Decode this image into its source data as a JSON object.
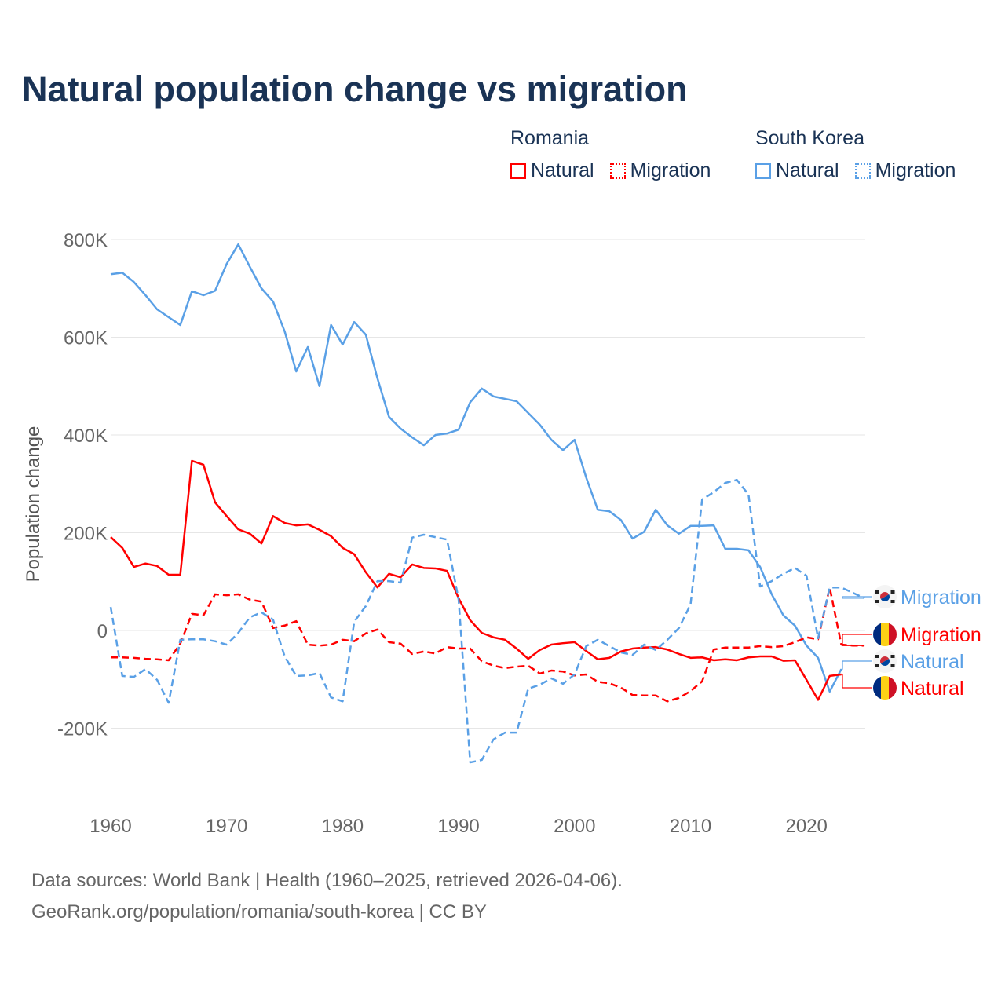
{
  "chart_data": {
    "type": "line",
    "title": "Natural population change vs migration",
    "xlabel": "",
    "ylabel": "Population change",
    "ylim": [
      -300000,
      850000
    ],
    "xlim": [
      1960,
      2025
    ],
    "grid": true,
    "y_ticks": [
      {
        "v": 800,
        "label": "800K"
      },
      {
        "v": 600,
        "label": "600K"
      },
      {
        "v": 400,
        "label": "400K"
      },
      {
        "v": 200,
        "label": "200K"
      },
      {
        "v": 0,
        "label": "0"
      },
      {
        "v": -200,
        "label": "-200K"
      }
    ],
    "x_ticks": [
      1960,
      1970,
      1980,
      1990,
      2000,
      2010,
      2020
    ],
    "legend": {
      "placement": "top-right",
      "groups": [
        {
          "country": "Romania",
          "items": [
            "Natural",
            "Migration"
          ]
        },
        {
          "country": "South Korea",
          "items": [
            "Natural",
            "Migration"
          ]
        }
      ]
    },
    "units": "thousands",
    "series": [
      {
        "name": "South Korea Natural",
        "country": "South Korea",
        "kind": "Natural",
        "color": "#5aa0e6",
        "dashed": false,
        "start": 1960,
        "values": [
          729,
          732,
          713,
          686,
          657,
          641,
          625,
          694,
          686,
          695,
          750,
          790,
          744,
          700,
          673,
          612,
          530,
          580,
          500,
          625,
          585,
          631,
          605,
          516,
          437,
          413,
          395,
          379,
          400,
          403,
          411,
          467,
          495,
          479,
          474,
          469,
          445,
          421,
          390,
          369,
          390,
          313,
          247,
          244,
          226,
          188,
          202,
          247,
          215,
          198,
          214,
          214,
          215,
          167,
          167,
          164,
          130,
          74,
          31,
          10,
          -31,
          -56,
          -125,
          -79
        ]
      },
      {
        "name": "Romania Natural",
        "country": "Romania",
        "kind": "Natural",
        "color": "#ff0000",
        "dashed": false,
        "start": 1960,
        "values": [
          191,
          169,
          130,
          137,
          132,
          114,
          114,
          347,
          339,
          262,
          234,
          207,
          198,
          178,
          234,
          220,
          215,
          217,
          206,
          193,
          169,
          156,
          119,
          88,
          116,
          109,
          135,
          128,
          127,
          122,
          66,
          21,
          -5,
          -14,
          -19,
          -37,
          -58,
          -40,
          -29,
          -26,
          -24,
          -42,
          -59,
          -56,
          -43,
          -37,
          -35,
          -34,
          -39,
          -48,
          -56,
          -55,
          -61,
          -59,
          -61,
          -55,
          -53,
          -53,
          -62,
          -61,
          -101,
          -142,
          -93,
          -90
        ]
      },
      {
        "name": "Romania Migration",
        "country": "Romania",
        "kind": "Migration",
        "color": "#ff0000",
        "dashed": true,
        "start": 1960,
        "values": [
          -55,
          -55,
          -56,
          -58,
          -59,
          -61,
          -27,
          34,
          31,
          74,
          72,
          74,
          63,
          59,
          5,
          10,
          19,
          -29,
          -31,
          -29,
          -19,
          -22,
          -6,
          2,
          -24,
          -27,
          -48,
          -43,
          -47,
          -34,
          -37,
          -37,
          -63,
          -72,
          -77,
          -74,
          -72,
          -88,
          -82,
          -84,
          -92,
          -90,
          -105,
          -108,
          -117,
          -132,
          -133,
          -133,
          -145,
          -138,
          -124,
          -104,
          -39,
          -35,
          -35,
          -35,
          -32,
          -34,
          -32,
          -24,
          -14,
          -18,
          88,
          -29,
          -31,
          -31
        ]
      },
      {
        "name": "South Korea Migration",
        "country": "South Korea",
        "kind": "Migration",
        "color": "#5aa0e6",
        "dashed": true,
        "start": 1960,
        "values": [
          48,
          -93,
          -95,
          -79,
          -101,
          -148,
          -19,
          -18,
          -18,
          -22,
          -29,
          -5,
          27,
          37,
          22,
          -53,
          -93,
          -92,
          -87,
          -137,
          -145,
          18,
          50,
          101,
          101,
          98,
          190,
          196,
          191,
          186,
          63,
          -270,
          -265,
          -223,
          -209,
          -209,
          -119,
          -111,
          -98,
          -109,
          -90,
          -32,
          -19,
          -32,
          -45,
          -50,
          -29,
          -40,
          -19,
          5,
          53,
          268,
          283,
          302,
          308,
          278,
          90,
          101,
          116,
          128,
          112,
          -16,
          88,
          88,
          77,
          66
        ]
      }
    ],
    "end_labels": [
      {
        "text": "Migration",
        "series": "South Korea Migration",
        "flag": "south-korea",
        "color": "#5aa0e6"
      },
      {
        "text": "Migration",
        "series": "Romania Migration",
        "flag": "romania",
        "color": "#ff0000"
      },
      {
        "text": "Natural",
        "series": "South Korea Natural",
        "flag": "south-korea",
        "color": "#5aa0e6"
      },
      {
        "text": "Natural",
        "series": "Romania Natural",
        "flag": "romania",
        "color": "#ff0000"
      }
    ]
  },
  "legend": {
    "romania": {
      "title": "Romania",
      "natural": "Natural",
      "migration": "Migration"
    },
    "south_korea": {
      "title": "South Korea",
      "natural": "Natural",
      "migration": "Migration"
    }
  },
  "footer": {
    "line1": "Data sources: World Bank | Health (1960–2025, retrieved 2026-04-06).",
    "line2": "GeoRank.org/population/romania/south-korea | CC BY"
  }
}
